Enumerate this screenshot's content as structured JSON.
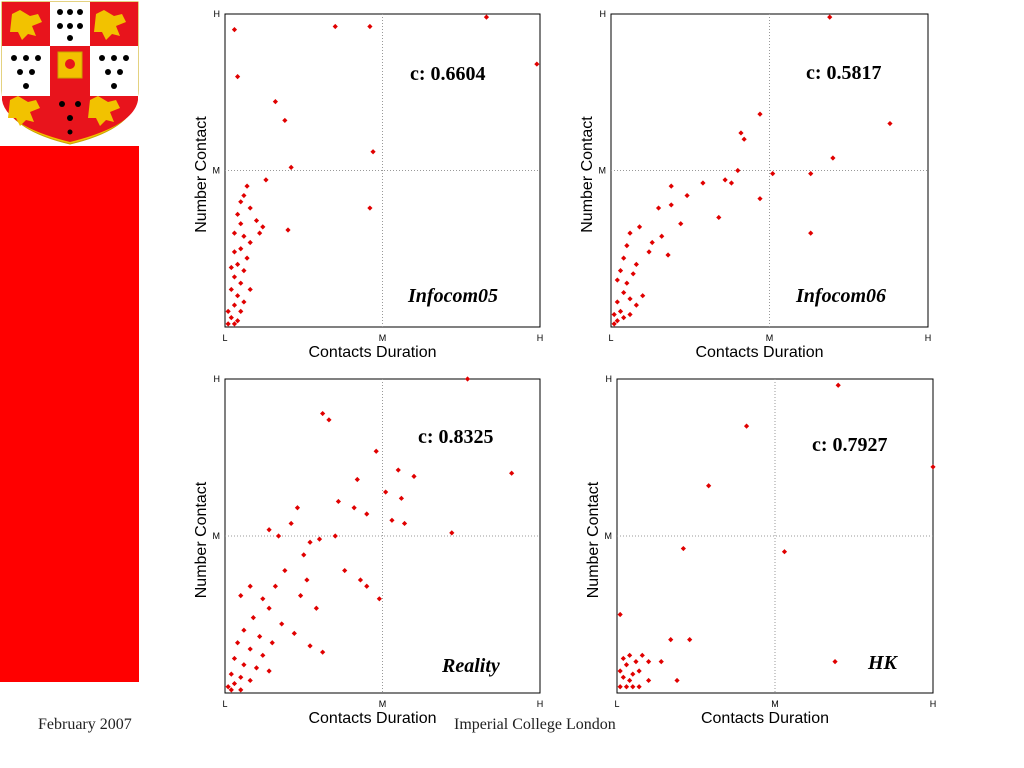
{
  "colors": {
    "brand_red": "#ff0000",
    "point_red": "#e00000",
    "crest_gold": "#f2c200",
    "crest_red": "#e8141c"
  },
  "footer": {
    "date": "February 2007",
    "institution": "Imperial College London"
  },
  "chart_data": [
    {
      "type": "scatter",
      "name": "Infocom05",
      "title": "",
      "xlabel": "Contacts Duration",
      "ylabel": "Number Contact",
      "correlation_label": "c: 0.6604",
      "x_ticks": [
        "L",
        "M",
        "H"
      ],
      "y_ticks": [
        "M",
        "H"
      ],
      "xlim": [
        0,
        1
      ],
      "ylim": [
        0,
        1
      ],
      "grid": true,
      "points": [
        [
          0.03,
          0.95
        ],
        [
          0.04,
          0.8
        ],
        [
          0.35,
          0.96
        ],
        [
          0.46,
          0.96
        ],
        [
          0.83,
          0.99
        ],
        [
          0.99,
          0.84
        ],
        [
          0.16,
          0.72
        ],
        [
          0.19,
          0.66
        ],
        [
          0.47,
          0.56
        ],
        [
          0.21,
          0.51
        ],
        [
          0.13,
          0.47
        ],
        [
          0.46,
          0.38
        ],
        [
          0.07,
          0.45
        ],
        [
          0.06,
          0.42
        ],
        [
          0.05,
          0.4
        ],
        [
          0.04,
          0.36
        ],
        [
          0.08,
          0.38
        ],
        [
          0.1,
          0.34
        ],
        [
          0.2,
          0.31
        ],
        [
          0.11,
          0.3
        ],
        [
          0.12,
          0.32
        ],
        [
          0.05,
          0.33
        ],
        [
          0.03,
          0.3
        ],
        [
          0.06,
          0.29
        ],
        [
          0.08,
          0.27
        ],
        [
          0.05,
          0.25
        ],
        [
          0.03,
          0.24
        ],
        [
          0.07,
          0.22
        ],
        [
          0.04,
          0.2
        ],
        [
          0.02,
          0.19
        ],
        [
          0.06,
          0.18
        ],
        [
          0.03,
          0.16
        ],
        [
          0.05,
          0.14
        ],
        [
          0.08,
          0.12
        ],
        [
          0.02,
          0.12
        ],
        [
          0.04,
          0.1
        ],
        [
          0.06,
          0.08
        ],
        [
          0.03,
          0.07
        ],
        [
          0.01,
          0.05
        ],
        [
          0.05,
          0.05
        ],
        [
          0.02,
          0.03
        ],
        [
          0.04,
          0.02
        ],
        [
          0.01,
          0.01
        ],
        [
          0.03,
          0.01
        ]
      ]
    },
    {
      "type": "scatter",
      "name": "Infocom06",
      "title": "",
      "xlabel": "Contacts Duration",
      "ylabel": "Number Contact",
      "correlation_label": "c: 0.5817",
      "x_ticks": [
        "L",
        "M",
        "H"
      ],
      "y_ticks": [
        "M",
        "H"
      ],
      "xlim": [
        0,
        1
      ],
      "ylim": [
        0,
        1
      ],
      "grid": true,
      "points": [
        [
          0.69,
          0.99
        ],
        [
          0.88,
          0.65
        ],
        [
          0.47,
          0.68
        ],
        [
          0.41,
          0.62
        ],
        [
          0.42,
          0.6
        ],
        [
          0.7,
          0.54
        ],
        [
          0.4,
          0.5
        ],
        [
          0.36,
          0.47
        ],
        [
          0.38,
          0.46
        ],
        [
          0.51,
          0.49
        ],
        [
          0.63,
          0.49
        ],
        [
          0.29,
          0.46
        ],
        [
          0.19,
          0.45
        ],
        [
          0.47,
          0.41
        ],
        [
          0.24,
          0.42
        ],
        [
          0.34,
          0.35
        ],
        [
          0.63,
          0.3
        ],
        [
          0.19,
          0.39
        ],
        [
          0.15,
          0.38
        ],
        [
          0.22,
          0.33
        ],
        [
          0.16,
          0.29
        ],
        [
          0.13,
          0.27
        ],
        [
          0.18,
          0.23
        ],
        [
          0.09,
          0.32
        ],
        [
          0.12,
          0.24
        ],
        [
          0.08,
          0.2
        ],
        [
          0.06,
          0.3
        ],
        [
          0.05,
          0.26
        ],
        [
          0.04,
          0.22
        ],
        [
          0.07,
          0.17
        ],
        [
          0.03,
          0.18
        ],
        [
          0.05,
          0.14
        ],
        [
          0.02,
          0.15
        ],
        [
          0.04,
          0.11
        ],
        [
          0.06,
          0.09
        ],
        [
          0.02,
          0.08
        ],
        [
          0.03,
          0.05
        ],
        [
          0.01,
          0.04
        ],
        [
          0.04,
          0.03
        ],
        [
          0.02,
          0.02
        ],
        [
          0.01,
          0.01
        ],
        [
          0.06,
          0.04
        ],
        [
          0.08,
          0.07
        ],
        [
          0.1,
          0.1
        ]
      ]
    },
    {
      "type": "scatter",
      "name": "Reality",
      "title": "",
      "xlabel": "Contacts Duration",
      "ylabel": "Number Contact",
      "correlation_label": "c: 0.8325",
      "x_ticks": [
        "L",
        "M",
        "H"
      ],
      "y_ticks": [
        "M",
        "H"
      ],
      "xlim": [
        0,
        1
      ],
      "ylim": [
        0,
        1
      ],
      "grid": true,
      "points": [
        [
          0.77,
          1.0
        ],
        [
          0.31,
          0.89
        ],
        [
          0.33,
          0.87
        ],
        [
          0.48,
          0.77
        ],
        [
          0.55,
          0.71
        ],
        [
          0.6,
          0.69
        ],
        [
          0.91,
          0.7
        ],
        [
          0.42,
          0.68
        ],
        [
          0.51,
          0.64
        ],
        [
          0.56,
          0.62
        ],
        [
          0.36,
          0.61
        ],
        [
          0.41,
          0.59
        ],
        [
          0.53,
          0.55
        ],
        [
          0.57,
          0.54
        ],
        [
          0.72,
          0.51
        ],
        [
          0.45,
          0.57
        ],
        [
          0.23,
          0.59
        ],
        [
          0.21,
          0.54
        ],
        [
          0.35,
          0.5
        ],
        [
          0.3,
          0.49
        ],
        [
          0.27,
          0.48
        ],
        [
          0.17,
          0.5
        ],
        [
          0.14,
          0.52
        ],
        [
          0.25,
          0.44
        ],
        [
          0.38,
          0.39
        ],
        [
          0.43,
          0.36
        ],
        [
          0.49,
          0.3
        ],
        [
          0.45,
          0.34
        ],
        [
          0.26,
          0.36
        ],
        [
          0.19,
          0.39
        ],
        [
          0.24,
          0.31
        ],
        [
          0.29,
          0.27
        ],
        [
          0.16,
          0.34
        ],
        [
          0.12,
          0.3
        ],
        [
          0.14,
          0.27
        ],
        [
          0.08,
          0.34
        ],
        [
          0.05,
          0.31
        ],
        [
          0.09,
          0.24
        ],
        [
          0.18,
          0.22
        ],
        [
          0.22,
          0.19
        ],
        [
          0.27,
          0.15
        ],
        [
          0.31,
          0.13
        ],
        [
          0.15,
          0.16
        ],
        [
          0.11,
          0.18
        ],
        [
          0.06,
          0.2
        ],
        [
          0.04,
          0.16
        ],
        [
          0.08,
          0.14
        ],
        [
          0.12,
          0.12
        ],
        [
          0.03,
          0.11
        ],
        [
          0.06,
          0.09
        ],
        [
          0.1,
          0.08
        ],
        [
          0.14,
          0.07
        ],
        [
          0.02,
          0.06
        ],
        [
          0.05,
          0.05
        ],
        [
          0.08,
          0.04
        ],
        [
          0.03,
          0.03
        ],
        [
          0.01,
          0.02
        ],
        [
          0.05,
          0.01
        ],
        [
          0.02,
          0.01
        ]
      ]
    },
    {
      "type": "scatter",
      "name": "HK",
      "title": "",
      "xlabel": "Contacts Duration",
      "ylabel": "Number Contact",
      "correlation_label": "c: 0.7927",
      "x_ticks": [
        "L",
        "M",
        "H"
      ],
      "y_ticks": [
        "M",
        "H"
      ],
      "xlim": [
        0,
        1
      ],
      "ylim": [
        0,
        1
      ],
      "grid": true,
      "points": [
        [
          0.7,
          0.98
        ],
        [
          0.41,
          0.85
        ],
        [
          0.29,
          0.66
        ],
        [
          1.0,
          0.72
        ],
        [
          0.21,
          0.46
        ],
        [
          0.53,
          0.45
        ],
        [
          0.69,
          0.1
        ],
        [
          0.01,
          0.25
        ],
        [
          0.17,
          0.17
        ],
        [
          0.23,
          0.17
        ],
        [
          0.19,
          0.04
        ],
        [
          0.14,
          0.1
        ],
        [
          0.1,
          0.1
        ],
        [
          0.1,
          0.04
        ],
        [
          0.08,
          0.12
        ],
        [
          0.07,
          0.07
        ],
        [
          0.06,
          0.1
        ],
        [
          0.05,
          0.06
        ],
        [
          0.04,
          0.12
        ],
        [
          0.04,
          0.04
        ],
        [
          0.03,
          0.09
        ],
        [
          0.02,
          0.05
        ],
        [
          0.02,
          0.11
        ],
        [
          0.01,
          0.02
        ],
        [
          0.03,
          0.02
        ],
        [
          0.05,
          0.02
        ],
        [
          0.07,
          0.02
        ],
        [
          0.01,
          0.07
        ]
      ]
    }
  ]
}
